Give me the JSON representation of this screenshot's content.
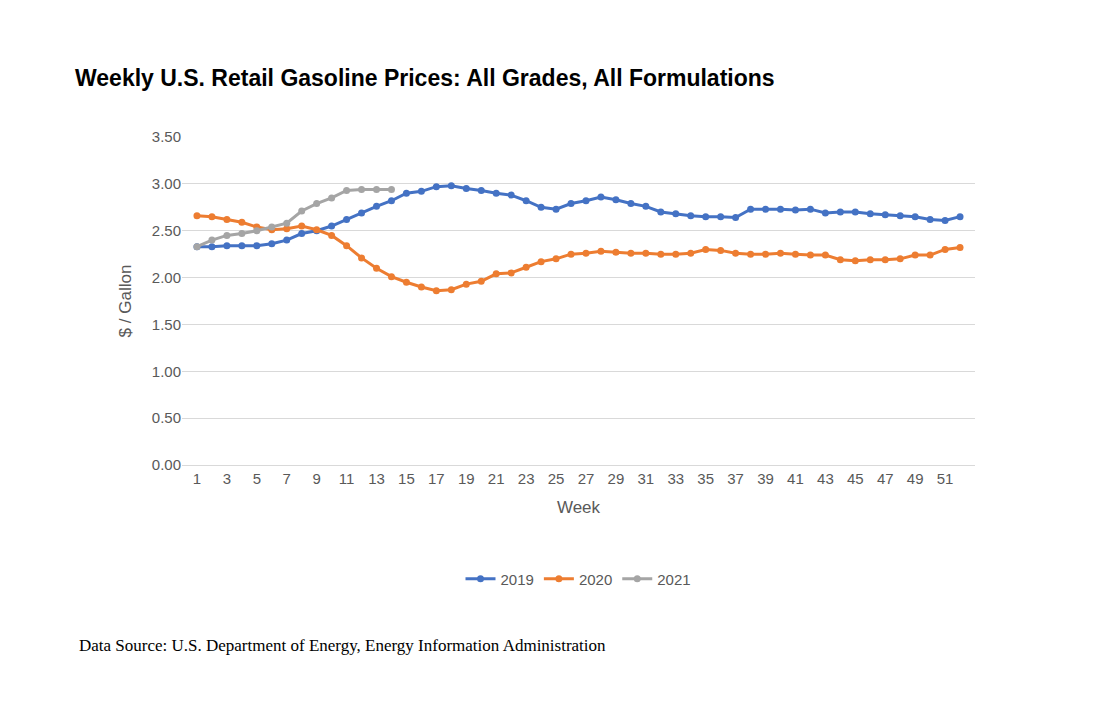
{
  "chart_data": {
    "type": "line",
    "title": "Weekly U.S. Retail Gasoline Prices: All Grades, All Formulations",
    "x_label": "Week",
    "y_label": "$ / Gallon",
    "annotations": [
      "Data Source: U.S. Department of Energy, Energy Information Administration"
    ],
    "x": [
      1,
      2,
      3,
      4,
      5,
      6,
      7,
      8,
      9,
      10,
      11,
      12,
      13,
      14,
      15,
      16,
      17,
      18,
      19,
      20,
      21,
      22,
      23,
      24,
      25,
      26,
      27,
      28,
      29,
      30,
      31,
      32,
      33,
      34,
      35,
      36,
      37,
      38,
      39,
      40,
      41,
      42,
      43,
      44,
      45,
      46,
      47,
      48,
      49,
      50,
      51,
      52
    ],
    "series": [
      {
        "name": "2019",
        "color": "#4472c4",
        "marker": "circle",
        "values": [
          2.33,
          2.33,
          2.34,
          2.34,
          2.34,
          2.36,
          2.4,
          2.47,
          2.5,
          2.55,
          2.62,
          2.69,
          2.76,
          2.82,
          2.9,
          2.92,
          2.97,
          2.98,
          2.95,
          2.93,
          2.9,
          2.88,
          2.82,
          2.75,
          2.73,
          2.79,
          2.82,
          2.86,
          2.83,
          2.79,
          2.76,
          2.7,
          2.68,
          2.66,
          2.65,
          2.65,
          2.64,
          2.73,
          2.73,
          2.73,
          2.72,
          2.73,
          2.69,
          2.7,
          2.7,
          2.68,
          2.67,
          2.66,
          2.65,
          2.62,
          2.61,
          2.65
        ]
      },
      {
        "name": "2020",
        "color": "#ed7d31",
        "marker": "circle",
        "values": [
          2.66,
          2.65,
          2.62,
          2.59,
          2.54,
          2.51,
          2.52,
          2.55,
          2.51,
          2.45,
          2.34,
          2.21,
          2.1,
          2.01,
          1.95,
          1.9,
          1.86,
          1.87,
          1.93,
          1.96,
          2.04,
          2.05,
          2.11,
          2.17,
          2.2,
          2.25,
          2.26,
          2.28,
          2.27,
          2.26,
          2.26,
          2.25,
          2.25,
          2.26,
          2.3,
          2.29,
          2.26,
          2.25,
          2.25,
          2.26,
          2.25,
          2.24,
          2.24,
          2.19,
          2.18,
          2.19,
          2.19,
          2.2,
          2.24,
          2.24,
          2.3,
          2.32
        ]
      },
      {
        "name": "2021",
        "color": "#a5a5a5",
        "marker": "circle",
        "values": [
          2.33,
          2.4,
          2.45,
          2.47,
          2.5,
          2.54,
          2.58,
          2.71,
          2.79,
          2.85,
          2.93,
          2.94,
          2.94,
          2.94,
          null,
          null,
          null,
          null,
          null,
          null,
          null,
          null,
          null,
          null,
          null,
          null,
          null,
          null,
          null,
          null,
          null,
          null,
          null,
          null,
          null,
          null,
          null,
          null,
          null,
          null,
          null,
          null,
          null,
          null,
          null,
          null,
          null,
          null,
          null,
          null,
          null,
          null
        ]
      }
    ],
    "xlim": [
      0,
      53
    ],
    "xticks": [
      1,
      3,
      5,
      7,
      9,
      11,
      13,
      15,
      17,
      19,
      21,
      23,
      25,
      27,
      29,
      31,
      33,
      35,
      37,
      39,
      41,
      43,
      45,
      47,
      49,
      51
    ],
    "ylim": [
      0,
      3.5
    ],
    "yticks": [
      {
        "value": 0,
        "label": "0.00"
      },
      {
        "value": 0.5,
        "label": "0.50"
      },
      {
        "value": 1,
        "label": "1.00"
      },
      {
        "value": 1.5,
        "label": "1.50"
      },
      {
        "value": 2,
        "label": "2.00"
      },
      {
        "value": 2.5,
        "label": "2.50"
      },
      {
        "value": 3,
        "label": "3.00"
      },
      {
        "value": 3.5,
        "label": "3.50"
      }
    ],
    "grid": true,
    "legend": "bottom"
  }
}
